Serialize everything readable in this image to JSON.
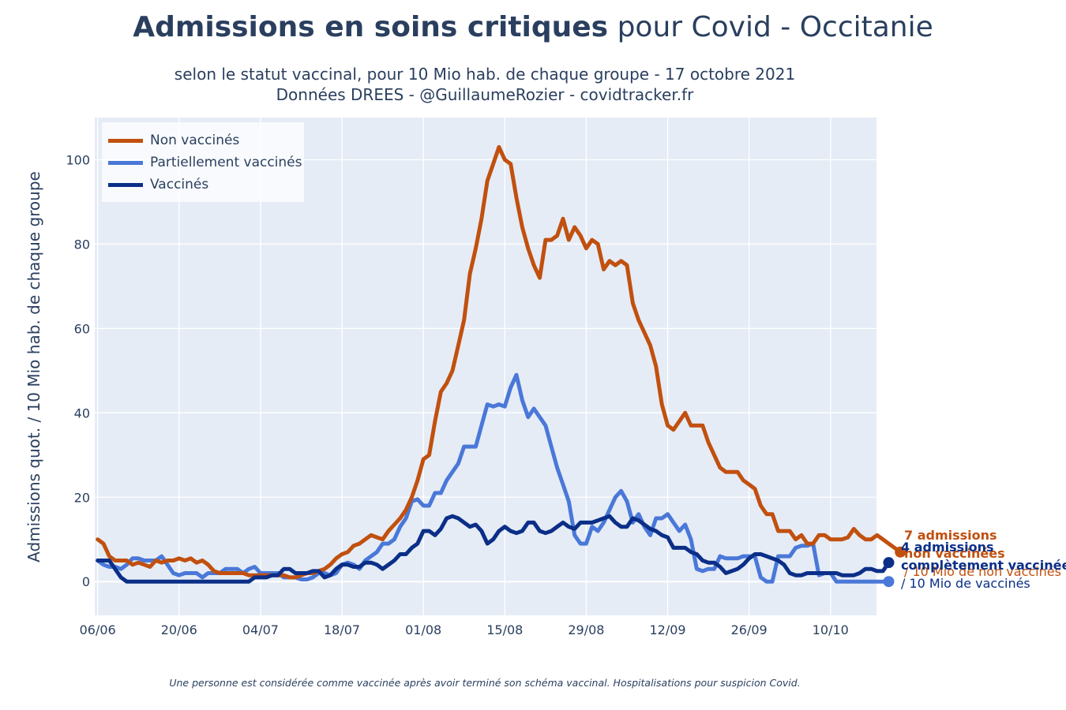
{
  "title": {
    "bold": "Admissions en soins critiques",
    "normal": " pour Covid - Occitanie"
  },
  "subtitle": {
    "line1": "selon le statut vaccinal, pour 10 Mio hab. de chaque groupe - 17 octobre 2021",
    "line2": "Données DREES - @GuillaumeRozier - covidtracker.fr"
  },
  "footnote": "Une personne est considérée comme vaccinée après avoir terminé son schéma vaccinal. Hospitalisations pour suspicion Covid.",
  "legend": [
    {
      "label": "Non vaccinés",
      "color": "#c1500f"
    },
    {
      "label": "Partiellement vaccinés",
      "color": "#4a78d8"
    },
    {
      "label": "Vaccinés",
      "color": "#0b2f88"
    }
  ],
  "annotations": {
    "non_vaccines": {
      "line1": " 7 admissions",
      "line2": " non vaccinées",
      "line3": " / 10 Mio de non vaccinés",
      "color": "#c1500f"
    },
    "vaccines": {
      "line1": "4 admissions",
      "line2": "complètement vaccinées",
      "line3": "/ 10 Mio de vaccinés",
      "color": "#0b2f88"
    }
  },
  "chart_data": {
    "type": "line",
    "ylabel": "Admissions quot. / 10 Mio hab. de chaque groupe",
    "xlabel": "",
    "x_start": "2021-06-06",
    "x_end": "2021-10-16",
    "xlim": [
      "2021-06-06",
      "2021-10-17"
    ],
    "ylim": [
      -8,
      110
    ],
    "x_ticks": [
      "06/06",
      "20/06",
      "04/07",
      "18/07",
      "01/08",
      "15/08",
      "29/08",
      "12/09",
      "26/09",
      "10/10"
    ],
    "y_ticks": [
      0,
      20,
      40,
      60,
      80,
      100
    ],
    "grid": true,
    "legend_position": "top-left",
    "series": [
      {
        "name": "Non vaccinés",
        "color": "#c1500f",
        "values": [
          10,
          9,
          6,
          5,
          5,
          5,
          4,
          4.5,
          4,
          3.5,
          5,
          4.5,
          5,
          5,
          5.5,
          5,
          5.5,
          4.5,
          5,
          4,
          2.5,
          2,
          2,
          2,
          2,
          2,
          1.5,
          1.5,
          1.5,
          1.5,
          1.5,
          1.5,
          1.5,
          1,
          1,
          1.5,
          2,
          2,
          2.5,
          3,
          4,
          5.5,
          6.5,
          7,
          8.5,
          9,
          10,
          11,
          10.5,
          10,
          12,
          13.5,
          15,
          17,
          20,
          24,
          29,
          30,
          38,
          45,
          47,
          50,
          56,
          62,
          73,
          79,
          86,
          95,
          99,
          103,
          100,
          99,
          91,
          84,
          79,
          75,
          72,
          81,
          81,
          82,
          86,
          81,
          84,
          82,
          79,
          81,
          80,
          74,
          76,
          75,
          76,
          75,
          66,
          62,
          59,
          56,
          51,
          42,
          37,
          36,
          38,
          40,
          37,
          37,
          37,
          33,
          30,
          27,
          26,
          26,
          26,
          24,
          23,
          22,
          18,
          16,
          16,
          12,
          12,
          12,
          10,
          11,
          9,
          9,
          11,
          11,
          10,
          10,
          10,
          10.5,
          12.5,
          11,
          10,
          10,
          11,
          10,
          9,
          8,
          7
        ]
      },
      {
        "name": "Partiellement vaccinés",
        "color": "#4a78d8",
        "values": [
          5,
          4,
          3.5,
          3.5,
          3,
          4,
          5.5,
          5.5,
          5,
          5,
          5,
          6,
          4,
          2,
          1.5,
          2,
          2,
          2,
          1,
          2,
          2,
          2,
          3,
          3,
          3,
          2,
          3,
          3.5,
          2,
          2,
          2,
          2,
          1,
          1,
          1,
          0.5,
          0.5,
          1,
          2,
          2,
          1.5,
          2,
          4,
          4.5,
          4,
          3,
          5,
          6,
          7,
          9,
          9,
          10,
          13,
          15,
          19,
          19.5,
          18,
          18,
          21,
          21,
          24,
          26,
          28,
          32,
          32,
          32,
          37,
          42,
          41.5,
          42,
          41.5,
          46,
          49,
          43,
          39,
          41,
          39,
          37,
          32,
          27,
          23,
          19,
          11,
          9,
          9,
          13,
          12,
          14,
          17,
          20,
          21.5,
          19,
          14,
          16,
          13,
          11,
          15,
          15,
          16,
          14,
          12,
          13.5,
          10,
          3,
          2.5,
          3,
          3,
          6,
          5.5,
          5.5,
          5.5,
          6,
          6,
          6,
          1,
          0,
          0,
          6,
          6,
          6,
          8,
          8.5,
          8.5,
          9,
          1.5,
          2,
          2,
          0,
          0,
          0,
          0,
          0,
          0,
          0,
          0,
          0,
          0
        ]
      },
      {
        "name": "Vaccinés",
        "color": "#0b2f88",
        "values": [
          5,
          5,
          5,
          3,
          1,
          0,
          0,
          0,
          0,
          0,
          0,
          0,
          0,
          0,
          0,
          0,
          0,
          0,
          0,
          0,
          0,
          0,
          0,
          0,
          0,
          0,
          0,
          1,
          1,
          1,
          1.5,
          1.5,
          3,
          3,
          2,
          2,
          2,
          2.5,
          2.5,
          1,
          1.5,
          3,
          4,
          4,
          3.5,
          3.5,
          4.5,
          4.5,
          4,
          3,
          4,
          5,
          6.5,
          6.5,
          8,
          9,
          12,
          12,
          11,
          12.5,
          15,
          15.5,
          15,
          14,
          13,
          13.5,
          12,
          9,
          10,
          12,
          13,
          12,
          11.5,
          12,
          14,
          14,
          12,
          11.5,
          12,
          13,
          14,
          13,
          12.5,
          14,
          14,
          14,
          14.5,
          15,
          15.5,
          14,
          13,
          13,
          15,
          14.5,
          13.5,
          12.5,
          12,
          11,
          10.5,
          8,
          8,
          8,
          7,
          6.5,
          5,
          4.5,
          4.5,
          3.5,
          2,
          2.5,
          3,
          4,
          5.5,
          6.5,
          6.5,
          6,
          5.5,
          5,
          4,
          2,
          1.5,
          1.5,
          2,
          2,
          2,
          2,
          2,
          2,
          1.5,
          1.5,
          1.5,
          2,
          3,
          3,
          2.5,
          2.5,
          4.5
        ]
      }
    ]
  }
}
